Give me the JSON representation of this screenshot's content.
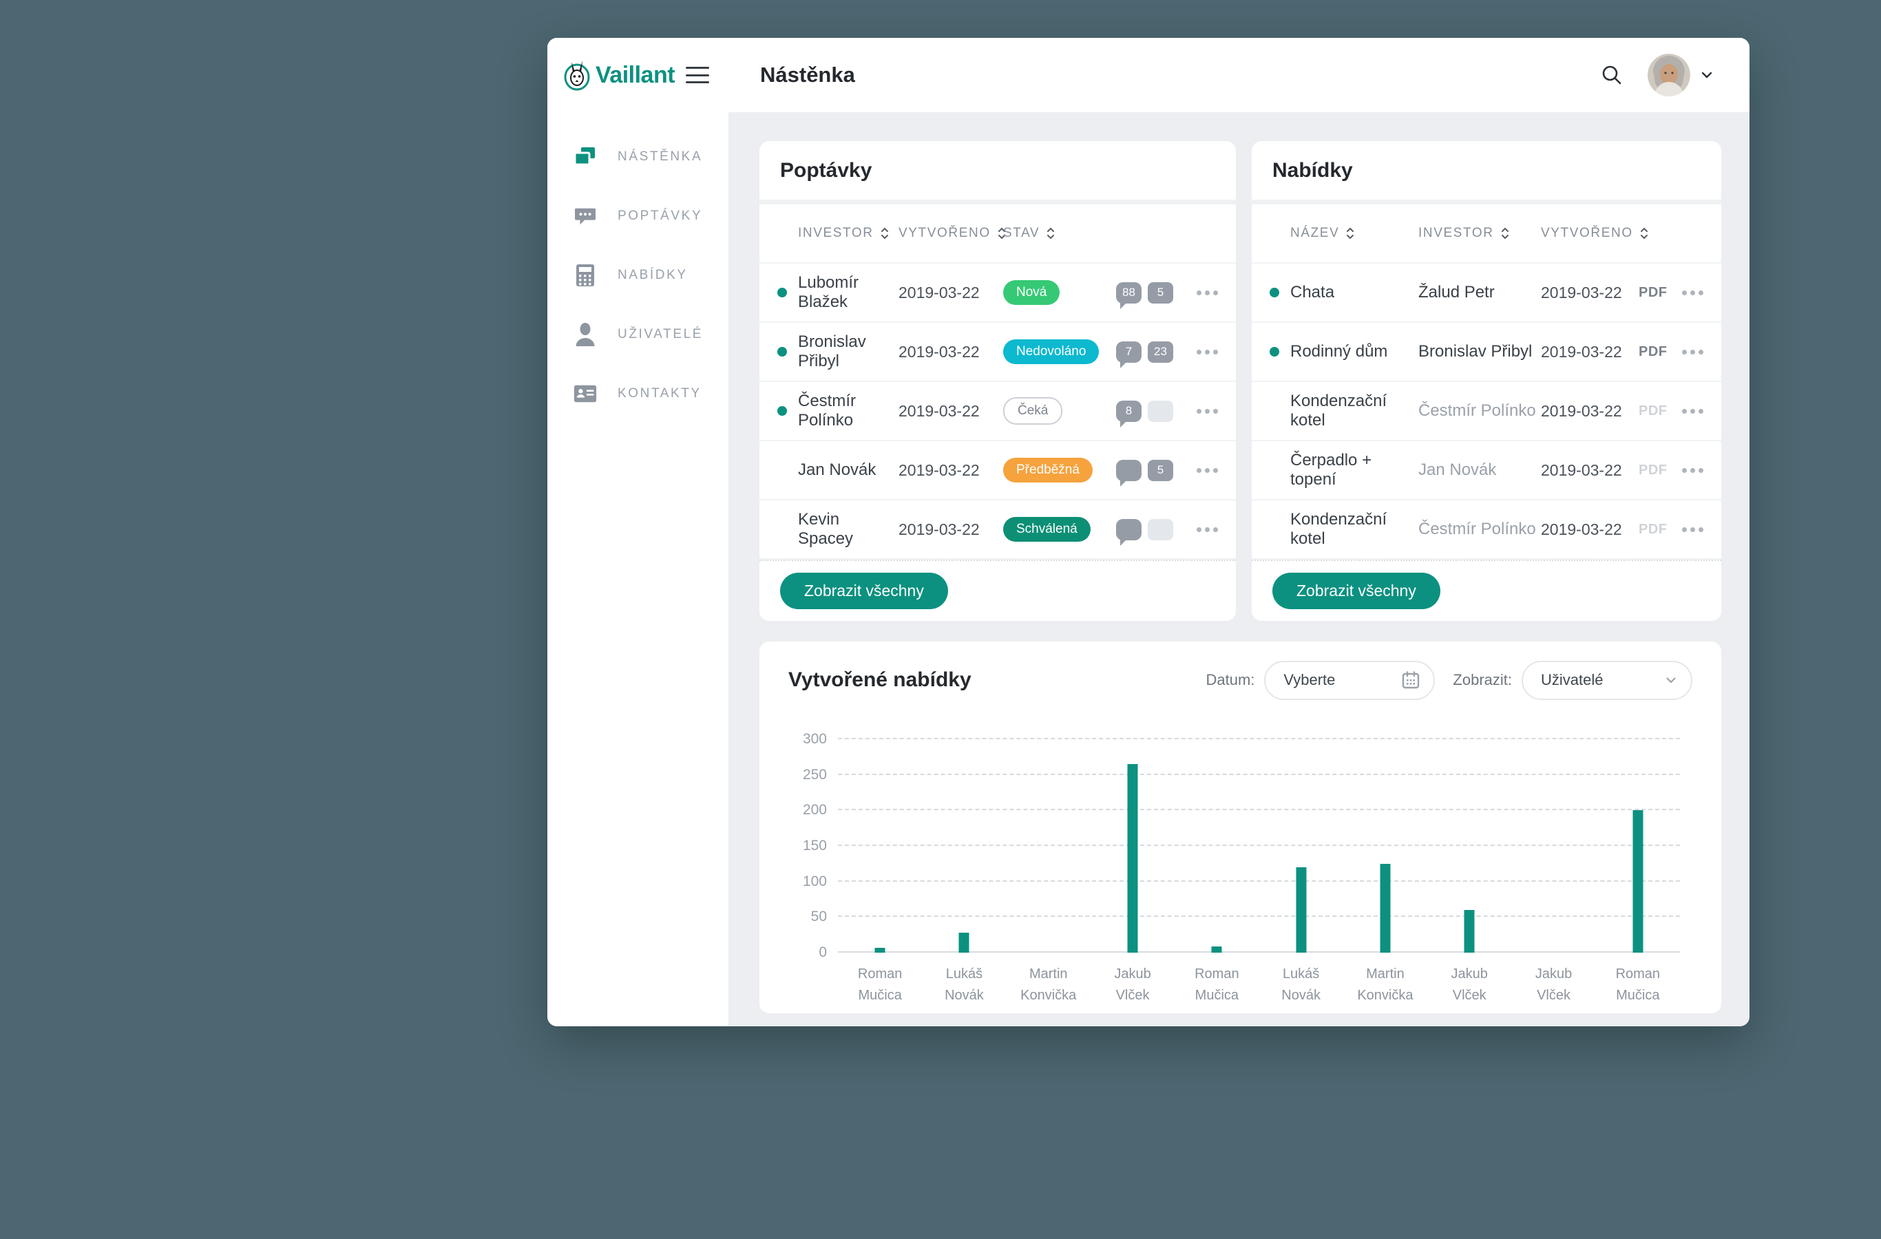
{
  "app": {
    "background": "#4c6771",
    "content_bg": "#eceef1",
    "accent": "#0c9180"
  },
  "brand": {
    "name": "Vaillant",
    "logo_icon": "hare-icon",
    "color": "#0c9180"
  },
  "header": {
    "title": "Nástěnka",
    "search_icon": "search-icon",
    "avatar_icon": "user-avatar",
    "chevron_icon": "chevron-down-icon"
  },
  "sidebar": {
    "items": [
      {
        "label": "NÁSTĚNKA",
        "icon": "dashboard-icon",
        "active": true
      },
      {
        "label": "POPTÁVKY",
        "icon": "comments-icon",
        "active": false
      },
      {
        "label": "NABÍDKY",
        "icon": "calculator-icon",
        "active": false
      },
      {
        "label": "UŽIVATELÉ",
        "icon": "user-icon",
        "active": false
      },
      {
        "label": "KONTAKTY",
        "icon": "contacts-icon",
        "active": false
      }
    ]
  },
  "status_styles": {
    "Nová": {
      "bg": "#36c975",
      "text": "#ffffff"
    },
    "Nedovoláno": {
      "bg": "#0cb9cf",
      "text": "#ffffff"
    },
    "Čeká": {
      "bg": "outline",
      "text": "#7b838c"
    },
    "Předběžná": {
      "bg": "#f6a23d",
      "text": "#ffffff"
    },
    "Schválená": {
      "bg": "#0c8f75",
      "text": "#ffffff"
    }
  },
  "poptavky": {
    "title": "Poptávky",
    "columns": [
      "INVESTOR",
      "VYTVOŘENO",
      "STAV"
    ],
    "rows": [
      {
        "active": true,
        "investor": "Lubomír Blažek",
        "created": "2019-03-22",
        "status": "Nová",
        "comments": "88",
        "tasks": "5"
      },
      {
        "active": true,
        "investor": "Bronislav Přibyl",
        "created": "2019-03-22",
        "status": "Nedovoláno",
        "comments": "7",
        "tasks": "23"
      },
      {
        "active": true,
        "investor": "Čestmír Polínko",
        "created": "2019-03-22",
        "status": "Čeká",
        "comments": "8",
        "tasks": null
      },
      {
        "active": false,
        "investor": "Jan Novák",
        "created": "2019-03-22",
        "status": "Předběžná",
        "comments": null,
        "tasks": "5"
      },
      {
        "active": false,
        "investor": "Kevin Spacey",
        "created": "2019-03-22",
        "status": "Schválená",
        "comments": null,
        "tasks": null
      }
    ],
    "footer_button": "Zobrazit všechny"
  },
  "nabidky": {
    "title": "Nabídky",
    "columns": [
      "NÁZEV",
      "INVESTOR",
      "VYTVOŘENO"
    ],
    "rows": [
      {
        "active": true,
        "name": "Chata",
        "investor": "Žalud Petr",
        "created": "2019-03-22",
        "pdf": "PDF",
        "pdf_enabled": true
      },
      {
        "active": true,
        "name": "Rodinný dům",
        "investor": "Bronislav Přibyl",
        "created": "2019-03-22",
        "pdf": "PDF",
        "pdf_enabled": true
      },
      {
        "active": false,
        "name": "Kondenzační kotel",
        "investor": "Čestmír Polínko",
        "created": "2019-03-22",
        "pdf": "PDF",
        "pdf_enabled": false
      },
      {
        "active": false,
        "name": "Čerpadlo + topení",
        "investor": "Jan Novák",
        "created": "2019-03-22",
        "pdf": "PDF",
        "pdf_enabled": false
      },
      {
        "active": false,
        "name": "Kondenzační kotel",
        "investor": "Čestmír Polínko",
        "created": "2019-03-22",
        "pdf": "PDF",
        "pdf_enabled": false
      }
    ],
    "footer_button": "Zobrazit všechny"
  },
  "chart_card": {
    "title": "Vytvořené nabídky",
    "datum_label": "Datum:",
    "datum_value": "Vyberte",
    "datum_icon": "calendar-icon",
    "zobrazit_label": "Zobrazit:",
    "zobrazit_value": "Uživatelé",
    "zobrazit_icon": "chevron-down-icon"
  },
  "chart_data": {
    "type": "bar",
    "title": "Vytvořené nabídky",
    "categories": [
      "Roman Mučica",
      "Lukáš Novák",
      "Martin Konvička",
      "Jakub Vlček",
      "Roman Mučica",
      "Lukáš Novák",
      "Martin Konvička",
      "Jakub Vlček",
      "Jakub Vlček",
      "Roman Mučica"
    ],
    "values": [
      7,
      28,
      0,
      265,
      9,
      120,
      125,
      60,
      0,
      200
    ],
    "xlabel": "",
    "ylabel": "",
    "ylim": [
      0,
      300
    ],
    "yticks": [
      0,
      50,
      100,
      150,
      200,
      250,
      300
    ],
    "grid": "horizontal-dashed",
    "legend": "none",
    "bar_color": "#0c9180"
  }
}
